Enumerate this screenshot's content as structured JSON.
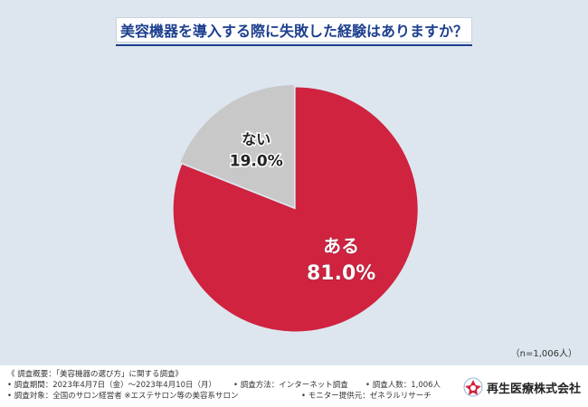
{
  "title": "美容機器を導入する際に失敗した経験はありますか？",
  "chart_data": {
    "type": "pie",
    "title": "美容機器を導入する際に失敗した経験はありますか？",
    "slices": [
      {
        "label": "ある",
        "value": 81.0,
        "display": "81.0%",
        "color": "#cf2340"
      },
      {
        "label": "ない",
        "value": 19.0,
        "display": "19.0%",
        "color": "#c8c8c8"
      }
    ],
    "note": "（n=1,006人）"
  },
  "footer": {
    "summary": "《 調査概要：「美容機器の選び方」に関する調査》",
    "period": "• 調査期間：2023年4月7日（金）～2023年4月10日（月）",
    "method": "• 調査方法：インターネット調査",
    "count": "• 調査人数：1,006人",
    "target": "• 調査対象：全国のサロン経営者 ※エステサロン等の美容系サロン",
    "provider": "• モニター提供元：ゼネラルリサーチ",
    "company": "再生医療株式会社"
  }
}
